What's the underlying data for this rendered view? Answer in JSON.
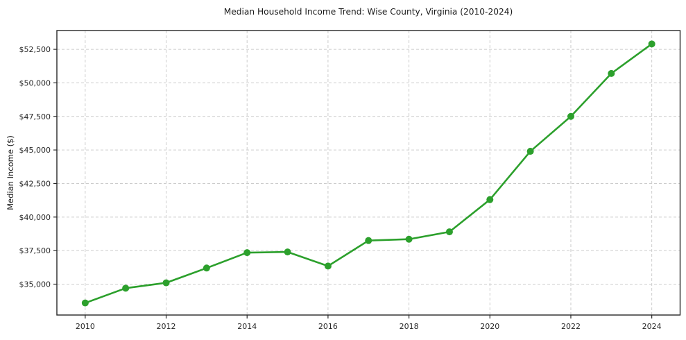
{
  "chart": {
    "title": "Median Household Income Trend: Wise County, Virginia (2010-2024)"
  },
  "chart_data": {
    "type": "line",
    "title": "Median Household Income Trend: Wise County, Virginia (2010-2024)",
    "xlabel": "",
    "ylabel": "Median Income ($)",
    "series_name": "Median Household Income",
    "x": [
      2010,
      2011,
      2012,
      2013,
      2014,
      2015,
      2016,
      2017,
      2018,
      2019,
      2020,
      2021,
      2022,
      2023,
      2024
    ],
    "values": [
      33600,
      34700,
      35100,
      36200,
      37350,
      37400,
      36350,
      38250,
      38350,
      38900,
      41300,
      44900,
      47500,
      50700,
      52900
    ],
    "xlim": [
      2009.3,
      2024.7
    ],
    "ylim": [
      32700,
      53900
    ],
    "xticks": {
      "values": [
        2010,
        2012,
        2014,
        2016,
        2018,
        2020,
        2022,
        2024
      ],
      "labels": [
        "2010",
        "2012",
        "2014",
        "2016",
        "2018",
        "2020",
        "2022",
        "2024"
      ]
    },
    "yticks": {
      "values": [
        35000,
        37500,
        40000,
        42500,
        45000,
        47500,
        50000,
        52500
      ],
      "labels": [
        "$35,000",
        "$37,500",
        "$40,000",
        "$42,500",
        "$45,000",
        "$47,500",
        "$50,000",
        "$52,500"
      ]
    },
    "grid": true,
    "grid_style": "dashed",
    "legend": false,
    "colors": {
      "line": "#2ca02c",
      "marker": "#2ca02c",
      "grid": "#cccccc",
      "spine": "#262626",
      "text": "#1a1a1a",
      "background": "#ffffff"
    },
    "line_width": 2.6,
    "marker": "circle",
    "marker_radius": 5
  }
}
